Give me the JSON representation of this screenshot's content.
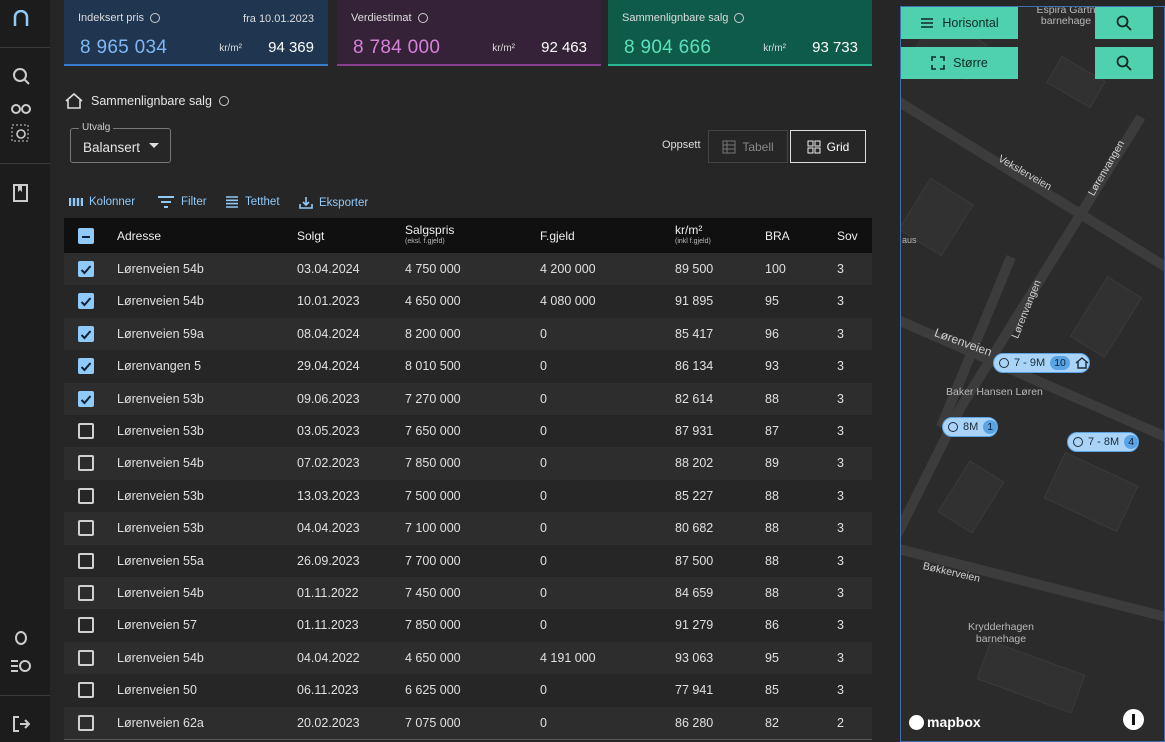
{
  "cards": [
    {
      "title": "Indeksert pris",
      "date": "fra 10.01.2023",
      "price": "8 965 034",
      "unit": "kr/m²",
      "per_m2": "94 369"
    },
    {
      "title": "Verdiestimat",
      "price": "8 784 000",
      "unit": "kr/m²",
      "per_m2": "92 463"
    },
    {
      "title": "Sammenlignbare salg",
      "price": "8 904 666",
      "unit": "kr/m²",
      "per_m2": "93 733"
    }
  ],
  "section": {
    "title": "Sammenlignbare salg",
    "select_label": "Utvalg",
    "select_value": "Balansert",
    "layout_label": "Oppsett",
    "layout_options": [
      "Tabell",
      "Grid"
    ]
  },
  "toolbar": [
    "Kolonner",
    "Filter",
    "Tetthet",
    "Eksporter"
  ],
  "table": {
    "columns": [
      {
        "label": "Adresse"
      },
      {
        "label": "Solgt"
      },
      {
        "label": "Salgspris",
        "sub": "(eksl. f.gjeld)"
      },
      {
        "label": "F.gjeld"
      },
      {
        "label": "kr/m²",
        "sub": "(inkl f.gjeld)"
      },
      {
        "label": "BRA"
      },
      {
        "label": "Sov"
      }
    ],
    "rows": [
      {
        "checked": true,
        "cells": [
          "Lørenveien 54b",
          "03.04.2024",
          "4 750 000",
          "4 200 000",
          "89 500",
          "100",
          "3"
        ]
      },
      {
        "checked": true,
        "cells": [
          "Lørenveien 54b",
          "10.01.2023",
          "4 650 000",
          "4 080 000",
          "91 895",
          "95",
          "3"
        ]
      },
      {
        "checked": true,
        "cells": [
          "Lørenveien 59a",
          "08.04.2024",
          "8 200 000",
          "0",
          "85 417",
          "96",
          "3"
        ]
      },
      {
        "checked": true,
        "cells": [
          "Lørenvangen 5",
          "29.04.2024",
          "8 010 500",
          "0",
          "86 134",
          "93",
          "3"
        ]
      },
      {
        "checked": true,
        "cells": [
          "Lørenveien 53b",
          "09.06.2023",
          "7 270 000",
          "0",
          "82 614",
          "88",
          "3"
        ]
      },
      {
        "checked": false,
        "cells": [
          "Lørenveien 53b",
          "03.05.2023",
          "7 650 000",
          "0",
          "87 931",
          "87",
          "3"
        ]
      },
      {
        "checked": false,
        "cells": [
          "Lørenveien 54b",
          "07.02.2023",
          "7 850 000",
          "0",
          "88 202",
          "89",
          "3"
        ]
      },
      {
        "checked": false,
        "cells": [
          "Lørenveien 53b",
          "13.03.2023",
          "7 500 000",
          "0",
          "85 227",
          "88",
          "3"
        ]
      },
      {
        "checked": false,
        "cells": [
          "Lørenveien 53b",
          "04.04.2023",
          "7 100 000",
          "0",
          "80 682",
          "88",
          "3"
        ]
      },
      {
        "checked": false,
        "cells": [
          "Lørenveien 55a",
          "26.09.2023",
          "7 700 000",
          "0",
          "87 500",
          "88",
          "3"
        ]
      },
      {
        "checked": false,
        "cells": [
          "Lørenveien 54b",
          "01.11.2022",
          "7 450 000",
          "0",
          "84 659",
          "88",
          "3"
        ]
      },
      {
        "checked": false,
        "cells": [
          "Lørenveien 57",
          "01.11.2023",
          "7 850 000",
          "0",
          "91 279",
          "86",
          "3"
        ]
      },
      {
        "checked": false,
        "cells": [
          "Lørenveien 54b",
          "04.04.2022",
          "4 650 000",
          "4 191 000",
          "93 063",
          "95",
          "3"
        ]
      },
      {
        "checked": false,
        "cells": [
          "Lørenveien 50",
          "06.11.2023",
          "6 625 000",
          "0",
          "77 941",
          "85",
          "3"
        ]
      },
      {
        "checked": false,
        "cells": [
          "Lørenveien 62a",
          "20.02.2023",
          "7 075 000",
          "0",
          "86 280",
          "82",
          "2"
        ]
      }
    ]
  },
  "map": {
    "buttons": [
      "Horisontal",
      "Større"
    ],
    "labels": [
      "Espira Gartn barnehage",
      "Vekslerveien",
      "Lørenvangen",
      "aus",
      "Lørenvangen",
      "Lørenveien",
      "Baker Hansen Løren",
      "Bøkkerveien",
      "Krydderhagen barnehage"
    ],
    "clusters": [
      {
        "label": "7 - 9M",
        "count": "10"
      },
      {
        "label": "8M",
        "count": "1"
      },
      {
        "label": "7 - 8M",
        "count": "4"
      }
    ],
    "logo": "mapbox"
  }
}
